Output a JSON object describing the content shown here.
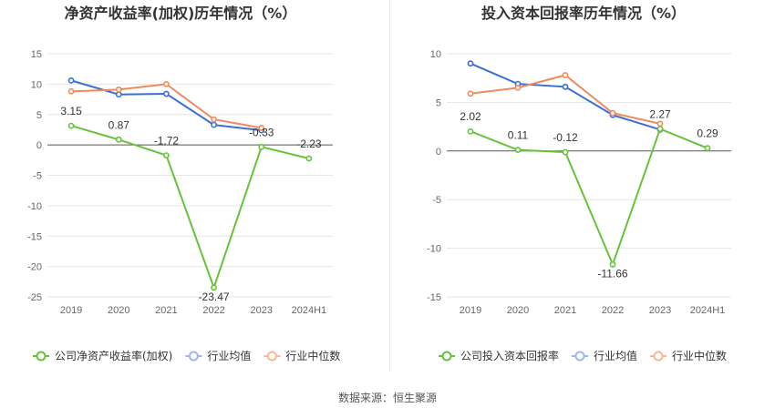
{
  "footer": {
    "source": "数据来源：恒生聚源"
  },
  "chart_data": [
    {
      "type": "line",
      "title": "净资产收益率(加权)历年情况（%）",
      "categories": [
        "2019",
        "2020",
        "2021",
        "2022",
        "2023",
        "2024H1"
      ],
      "yticks": [
        "15",
        "10",
        "5",
        "0",
        "-5",
        "-10",
        "-15",
        "-20",
        "-25"
      ],
      "ylim": [
        -25,
        15
      ],
      "grid": true,
      "legend_position": "bottom-left",
      "series": [
        {
          "name": "公司净资产收益率(加权)",
          "color": "#67c23a",
          "values": [
            3.15,
            0.87,
            -1.72,
            -23.47,
            -0.33,
            -2.23
          ],
          "labels": [
            "3.15",
            "0.87",
            "-1.72",
            "-23.47",
            "-0.33",
            "-2.23"
          ]
        },
        {
          "name": "行业均值",
          "color": "#3a6fd8",
          "values": [
            10.6,
            8.3,
            8.4,
            3.3,
            2.4,
            null
          ]
        },
        {
          "name": "行业中位数",
          "color": "#f08a5d",
          "values": [
            8.8,
            9.1,
            10.0,
            4.2,
            2.8,
            null
          ]
        }
      ]
    },
    {
      "type": "line",
      "title": "投入资本回报率历年情况（%）",
      "categories": [
        "2019",
        "2020",
        "2021",
        "2022",
        "2023",
        "2024H1"
      ],
      "yticks": [
        "10",
        "5",
        "0",
        "-5",
        "-10",
        "-15"
      ],
      "ylim": [
        -15,
        10
      ],
      "grid": true,
      "legend_position": "bottom-left",
      "series": [
        {
          "name": "公司投入资本回报率",
          "color": "#67c23a",
          "values": [
            2.02,
            0.11,
            -0.12,
            -11.66,
            2.27,
            0.29
          ],
          "labels": [
            "2.02",
            "0.11",
            "-0.12",
            "-11.66",
            "2.27",
            "0.29"
          ]
        },
        {
          "name": "行业均值",
          "color": "#3a6fd8",
          "values": [
            9.0,
            6.9,
            6.6,
            3.7,
            2.2,
            null
          ]
        },
        {
          "name": "行业中位数",
          "color": "#f08a5d",
          "values": [
            5.9,
            6.5,
            7.8,
            3.9,
            2.8,
            null
          ]
        }
      ]
    }
  ]
}
